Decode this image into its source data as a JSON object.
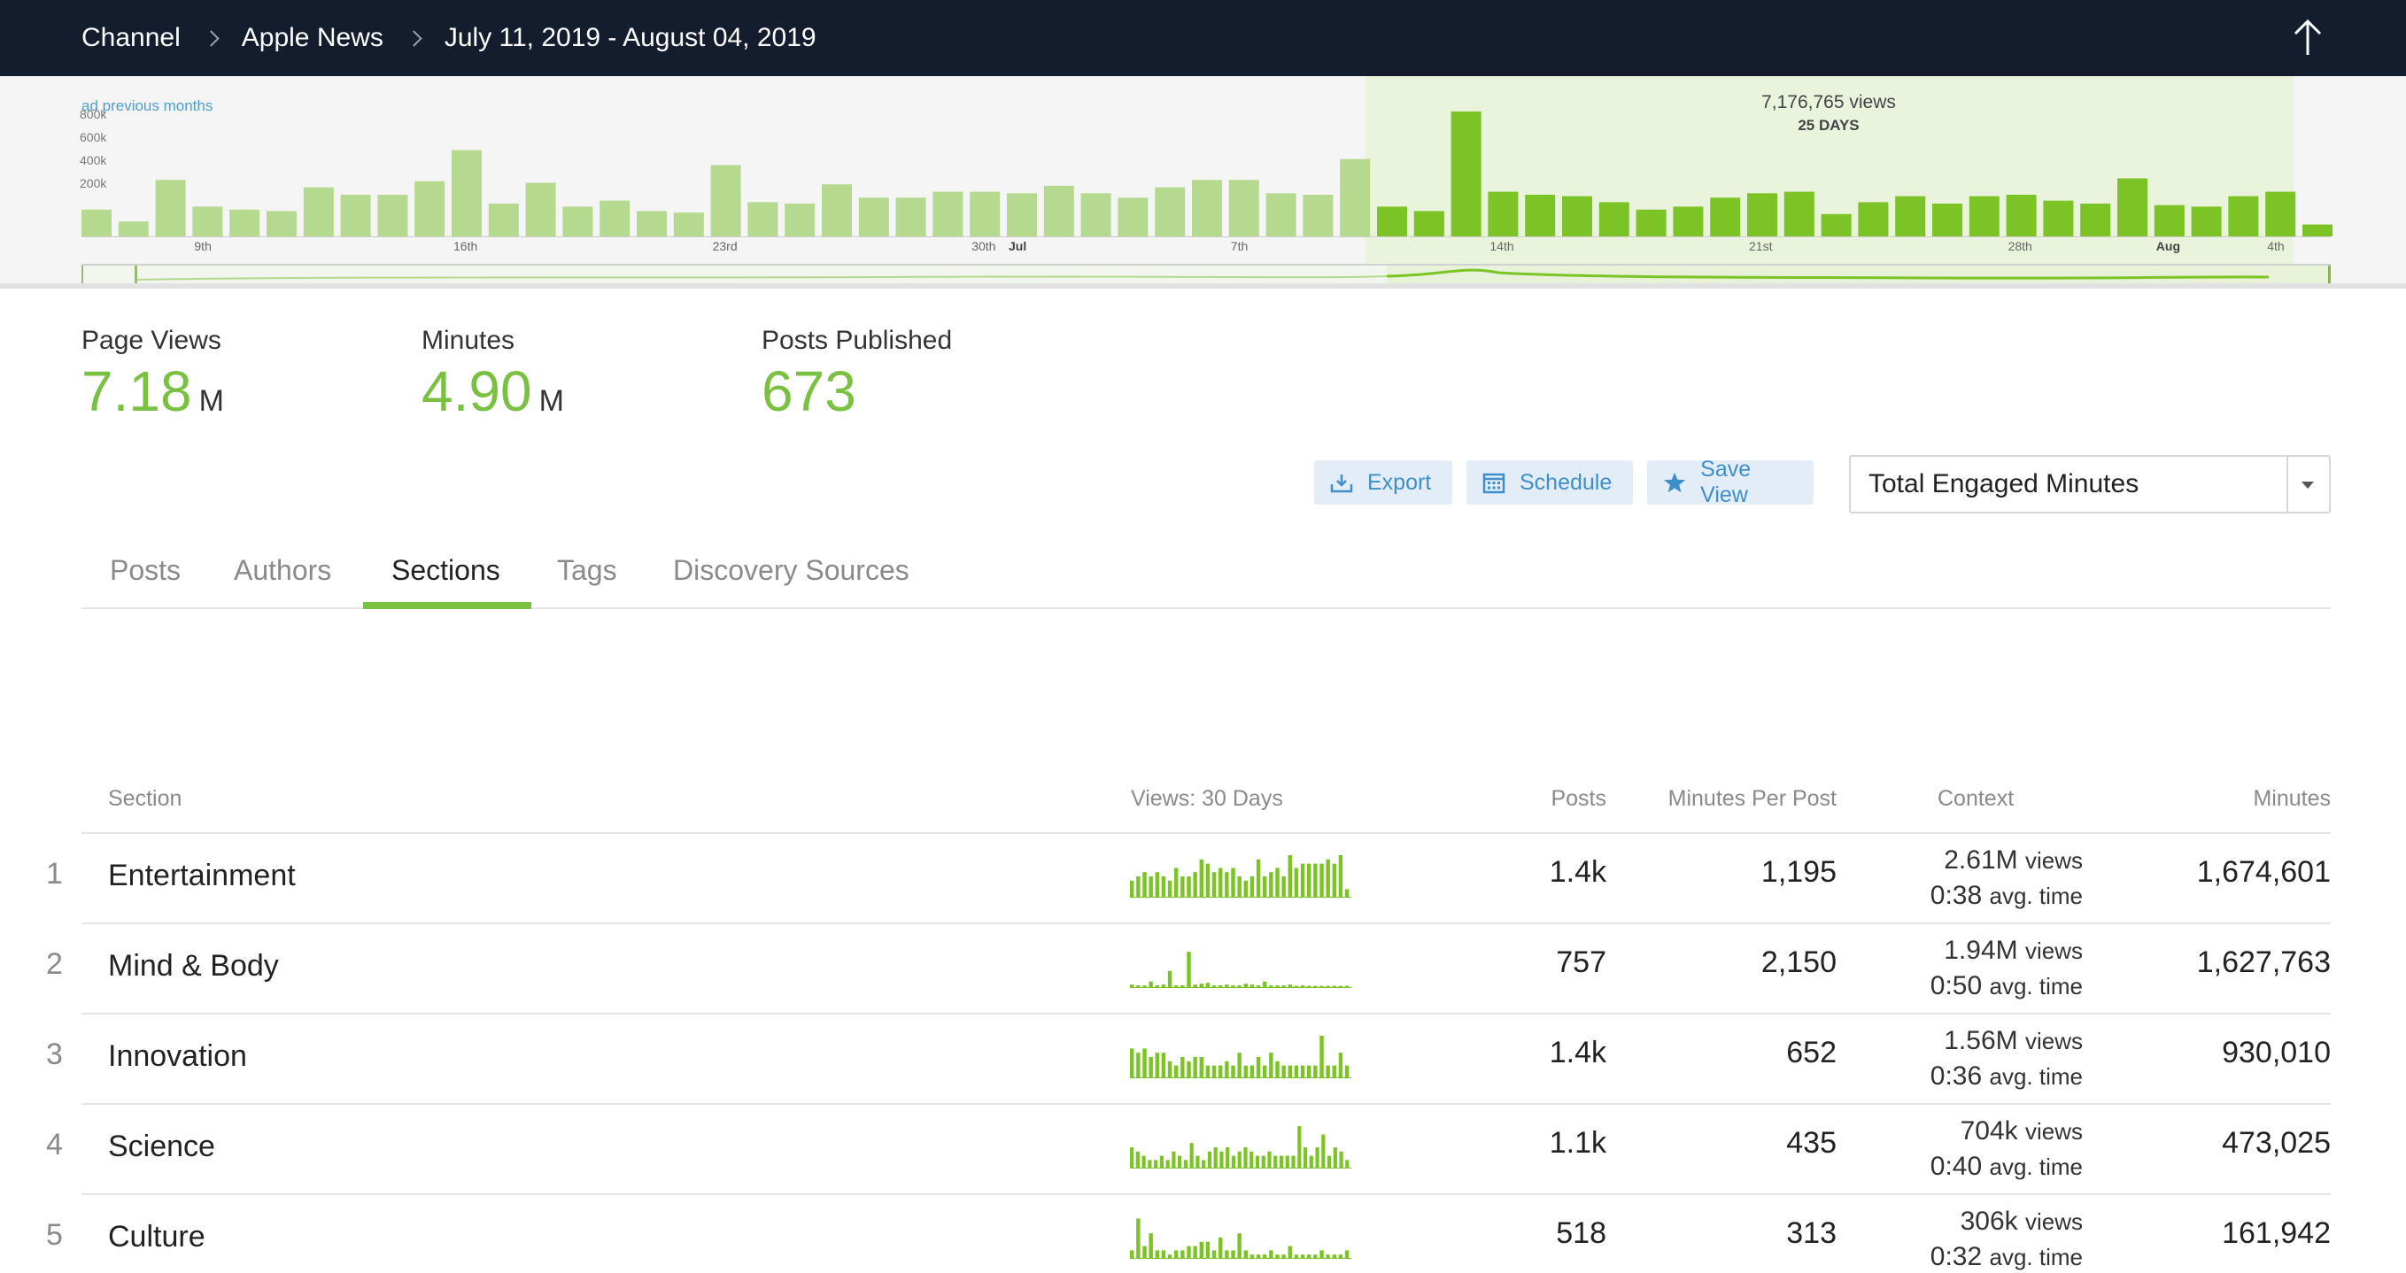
{
  "breadcrumb": {
    "channel": "Channel",
    "source": "Apple News",
    "range": "July 11, 2019 - August 04, 2019"
  },
  "overview": {
    "link": "ad previous months",
    "y_ticks": [
      "800k",
      "600k",
      "400k",
      "200k"
    ],
    "total": "7,176,765 views",
    "days": "25 DAYS",
    "x_labels": [
      {
        "label": "9th",
        "bar": 3,
        "bold": false
      },
      {
        "label": "16th",
        "bar": 10,
        "bold": false
      },
      {
        "label": "23rd",
        "bar": 17,
        "bold": false
      },
      {
        "label": "30th",
        "bar": 24,
        "bold": false
      },
      {
        "label": "Jul",
        "bar": 25,
        "bold": true
      },
      {
        "label": "7th",
        "bar": 31,
        "bold": false
      },
      {
        "label": "14th",
        "bar": 38,
        "bold": false
      },
      {
        "label": "21st",
        "bar": 45,
        "bold": false
      },
      {
        "label": "28th",
        "bar": 52,
        "bold": false
      },
      {
        "label": "Aug",
        "bar": 56,
        "bold": true
      },
      {
        "label": "4th",
        "bar": 59,
        "bold": false
      }
    ],
    "bars": [
      0.18,
      0.1,
      0.38,
      0.2,
      0.18,
      0.17,
      0.33,
      0.28,
      0.28,
      0.37,
      0.58,
      0.22,
      0.36,
      0.2,
      0.24,
      0.17,
      0.16,
      0.48,
      0.23,
      0.22,
      0.35,
      0.26,
      0.26,
      0.3,
      0.3,
      0.29,
      0.34,
      0.29,
      0.26,
      0.33,
      0.38,
      0.38,
      0.29,
      0.28,
      0.52,
      0.2,
      0.17,
      0.84,
      0.3,
      0.28,
      0.27,
      0.23,
      0.18,
      0.2,
      0.26,
      0.29,
      0.3,
      0.15,
      0.23,
      0.27,
      0.22,
      0.27,
      0.28,
      0.24,
      0.22,
      0.39,
      0.21,
      0.2,
      0.27,
      0.3,
      0.08
    ],
    "highlight_start": 35,
    "colors": {
      "past": "#b5d98e",
      "current": "#7cc425"
    }
  },
  "metrics": [
    {
      "label": "Page Views",
      "value": "7.18",
      "unit": "M"
    },
    {
      "label": "Minutes",
      "value": "4.90",
      "unit": "M"
    },
    {
      "label": "Posts Published",
      "value": "673",
      "unit": ""
    }
  ],
  "toolbar": {
    "export": "Export",
    "schedule": "Schedule",
    "save_view": "Save View",
    "metric_select": "Total Engaged Minutes"
  },
  "tabs": [
    "Posts",
    "Authors",
    "Sections",
    "Tags",
    "Discovery Sources"
  ],
  "active_tab": "Sections",
  "table": {
    "headers": {
      "section": "Section",
      "views": "Views: 30 Days",
      "posts": "Posts",
      "mpp": "Minutes Per Post",
      "context": "Context",
      "minutes": "Minutes"
    },
    "rows": [
      {
        "rank": "1",
        "section": "Entertainment",
        "posts": "1.4k",
        "mpp": "1,195",
        "views": "2.61M",
        "views_label": "views",
        "time": "0:38",
        "time_label": "avg. time",
        "minutes": "1,674,601",
        "spark": [
          0.4,
          0.5,
          0.6,
          0.5,
          0.6,
          0.5,
          0.4,
          0.7,
          0.5,
          0.5,
          0.6,
          0.9,
          0.8,
          0.6,
          0.7,
          0.6,
          0.7,
          0.5,
          0.4,
          0.5,
          0.9,
          0.5,
          0.6,
          0.7,
          0.5,
          1.0,
          0.7,
          0.8,
          0.8,
          0.8,
          0.8,
          0.9,
          0.8,
          1.0,
          0.2
        ]
      },
      {
        "rank": "2",
        "section": "Mind & Body",
        "posts": "757",
        "mpp": "2,150",
        "views": "1.94M",
        "views_label": "views",
        "time": "0:50",
        "time_label": "avg. time",
        "minutes": "1,627,763",
        "spark": [
          0.08,
          0.06,
          0.06,
          0.15,
          0.06,
          0.08,
          0.4,
          0.06,
          0.06,
          0.85,
          0.08,
          0.1,
          0.12,
          0.06,
          0.06,
          0.08,
          0.06,
          0.06,
          0.1,
          0.08,
          0.06,
          0.15,
          0.06,
          0.06,
          0.06,
          0.08,
          0.05,
          0.06,
          0.05,
          0.05,
          0.05,
          0.05,
          0.05,
          0.05,
          0.05
        ]
      },
      {
        "rank": "3",
        "section": "Innovation",
        "posts": "1.4k",
        "mpp": "652",
        "views": "1.56M",
        "views_label": "views",
        "time": "0:36",
        "time_label": "avg. time",
        "minutes": "930,010",
        "spark": [
          0.7,
          0.6,
          0.7,
          0.5,
          0.6,
          0.6,
          0.4,
          0.3,
          0.5,
          0.4,
          0.5,
          0.5,
          0.3,
          0.3,
          0.3,
          0.4,
          0.3,
          0.6,
          0.3,
          0.3,
          0.5,
          0.3,
          0.6,
          0.4,
          0.3,
          0.3,
          0.3,
          0.3,
          0.3,
          0.3,
          1.0,
          0.3,
          0.3,
          0.6,
          0.3
        ]
      },
      {
        "rank": "4",
        "section": "Science",
        "posts": "1.1k",
        "mpp": "435",
        "views": "704k",
        "views_label": "views",
        "time": "0:40",
        "time_label": "avg. time",
        "minutes": "473,025",
        "spark": [
          0.5,
          0.4,
          0.3,
          0.2,
          0.2,
          0.3,
          0.2,
          0.4,
          0.3,
          0.2,
          0.6,
          0.3,
          0.2,
          0.4,
          0.5,
          0.4,
          0.5,
          0.3,
          0.4,
          0.5,
          0.4,
          0.3,
          0.3,
          0.4,
          0.3,
          0.3,
          0.3,
          0.3,
          1.0,
          0.5,
          0.3,
          0.5,
          0.8,
          0.3,
          0.5,
          0.4,
          0.2
        ]
      },
      {
        "rank": "5",
        "section": "Culture",
        "posts": "518",
        "mpp": "313",
        "views": "306k",
        "views_label": "views",
        "time": "0:32",
        "time_label": "avg. time",
        "minutes": "161,942",
        "spark": [
          0.2,
          0.95,
          0.3,
          0.6,
          0.2,
          0.2,
          0.1,
          0.2,
          0.2,
          0.3,
          0.3,
          0.4,
          0.4,
          0.2,
          0.5,
          0.2,
          0.2,
          0.6,
          0.2,
          0.1,
          0.1,
          0.1,
          0.2,
          0.1,
          0.1,
          0.3,
          0.1,
          0.1,
          0.1,
          0.1,
          0.2,
          0.1,
          0.1,
          0.1,
          0.2
        ]
      }
    ]
  }
}
